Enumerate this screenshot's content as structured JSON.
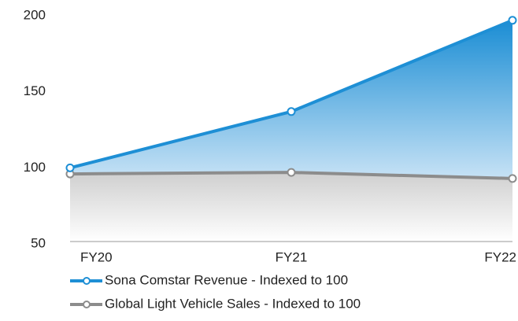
{
  "chart_data": {
    "type": "area",
    "categories": [
      "FY20",
      "FY21",
      "FY22"
    ],
    "series": [
      {
        "name": "Sona Comstar Revenue - Indexed to 100",
        "color": "#1e8fd5",
        "values": [
          100,
          137,
          197
        ]
      },
      {
        "name": "Global Light Vehicle Sales - Indexed to 100",
        "color": "#8c8c8c",
        "values": [
          96,
          97,
          93
        ]
      }
    ],
    "ylim": [
      50,
      200
    ],
    "yticks": [
      50,
      100,
      150,
      200
    ],
    "grid": false
  }
}
